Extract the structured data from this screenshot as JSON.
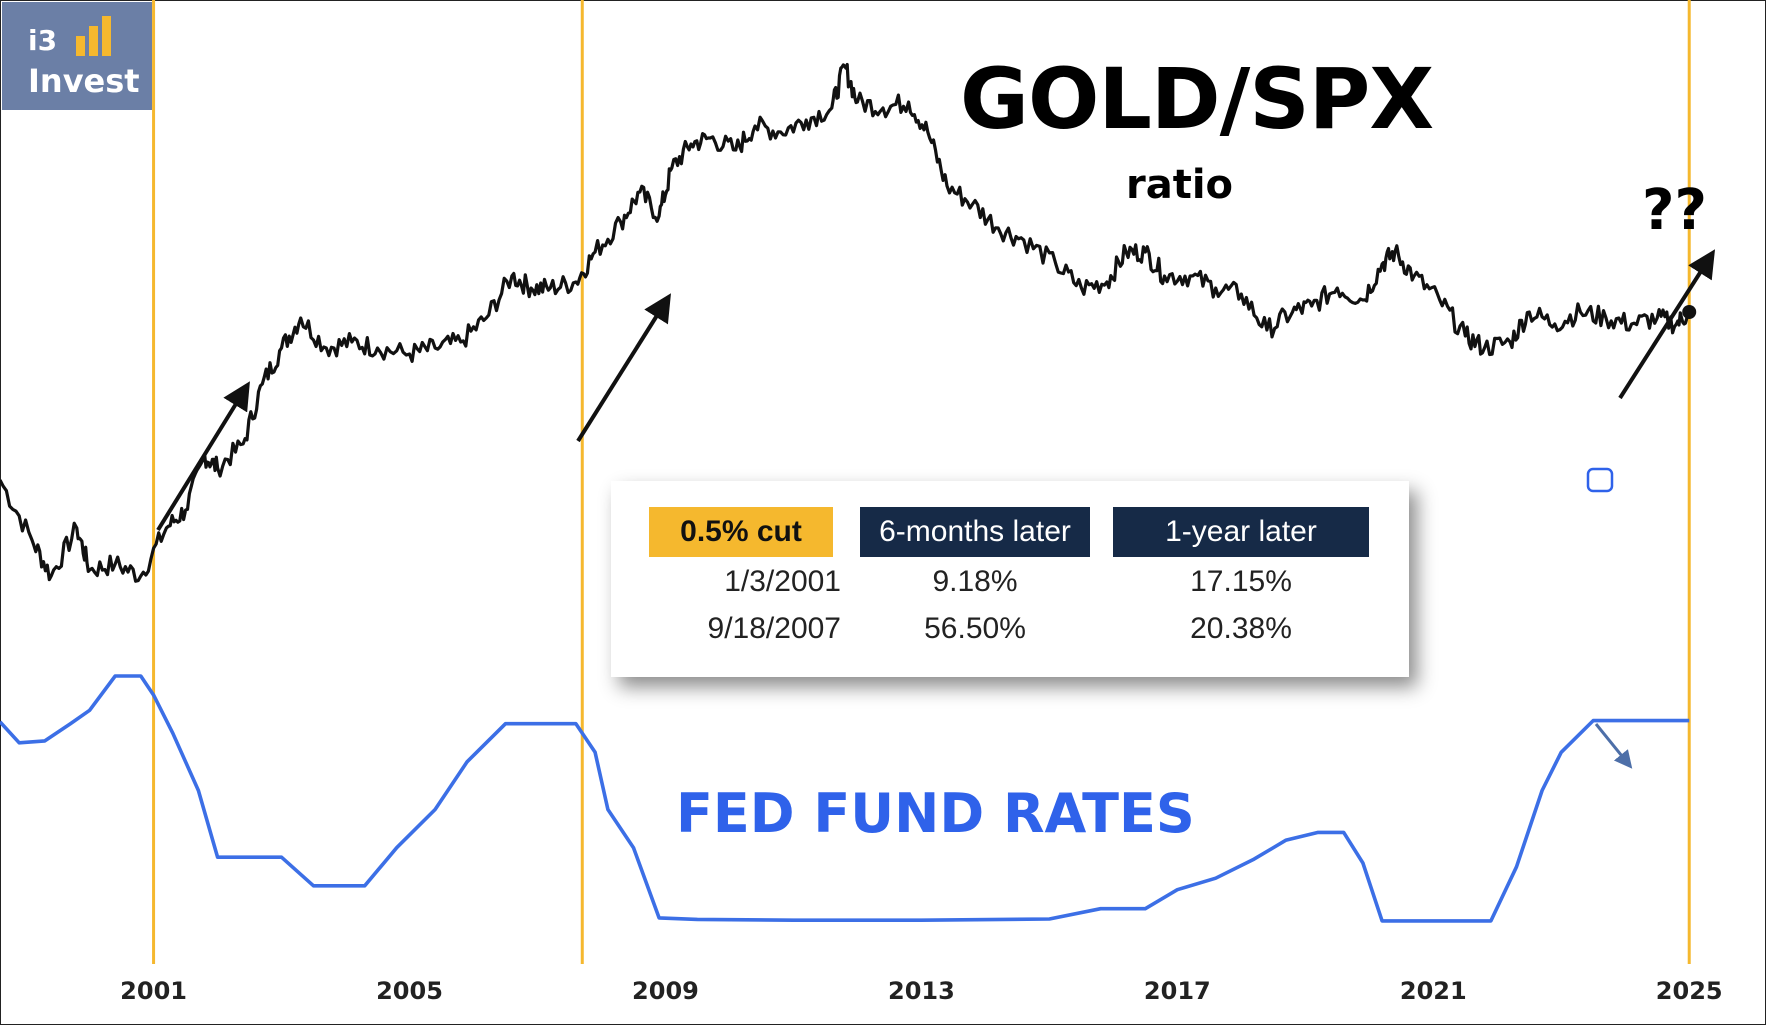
{
  "logo": {
    "line1": "i3",
    "line2": "Invest"
  },
  "title": "GOLD/SPX",
  "subtitle": "ratio",
  "question_marks": "??",
  "fed_label": "FED FUND RATES",
  "colors": {
    "gold_line": "#111111",
    "fed_line": "#3c6fe6",
    "vline": "#f5b82e",
    "header_gold": "#f5b82e",
    "header_navy": "#162a47",
    "fed_text": "#2f62ea",
    "logo_bg": "#6b7fa6"
  },
  "table": {
    "headers": [
      "0.5% cut",
      "6-months later",
      "1-year later"
    ],
    "rows": [
      {
        "date": "1/3/2001",
        "six_month": "9.18%",
        "one_year": "17.15%"
      },
      {
        "date": "9/18/2007",
        "six_month": "56.50%",
        "one_year": "20.38%"
      }
    ]
  },
  "chart_data": {
    "type": "line",
    "title": "GOLD/SPX ratio",
    "x_ticks": [
      "2001",
      "2005",
      "2009",
      "2013",
      "2017",
      "2021",
      "2025"
    ],
    "x_range": [
      1998.6,
      2026.2
    ],
    "vertical_markers": [
      2001.0,
      2007.7,
      2025.0
    ],
    "series": [
      {
        "name": "GOLD/SPX",
        "y_range": [
          0,
          1
        ],
        "points": [
          [
            1998.6,
            0.3
          ],
          [
            1999.1,
            0.2
          ],
          [
            1999.4,
            0.14
          ],
          [
            1999.8,
            0.22
          ],
          [
            2000.0,
            0.15
          ],
          [
            2000.4,
            0.16
          ],
          [
            2000.8,
            0.14
          ],
          [
            2001.2,
            0.22
          ],
          [
            2001.5,
            0.25
          ],
          [
            2001.8,
            0.34
          ],
          [
            2002.0,
            0.32
          ],
          [
            2002.4,
            0.36
          ],
          [
            2002.7,
            0.46
          ],
          [
            2003.0,
            0.52
          ],
          [
            2003.3,
            0.57
          ],
          [
            2003.7,
            0.52
          ],
          [
            2004.1,
            0.53
          ],
          [
            2004.5,
            0.52
          ],
          [
            2005.0,
            0.51
          ],
          [
            2005.4,
            0.52
          ],
          [
            2005.8,
            0.53
          ],
          [
            2006.2,
            0.57
          ],
          [
            2006.6,
            0.64
          ],
          [
            2006.9,
            0.62
          ],
          [
            2007.2,
            0.62
          ],
          [
            2007.6,
            0.63
          ],
          [
            2007.9,
            0.68
          ],
          [
            2008.3,
            0.73
          ],
          [
            2008.6,
            0.78
          ],
          [
            2008.9,
            0.74
          ],
          [
            2009.1,
            0.82
          ],
          [
            2009.4,
            0.86
          ],
          [
            2009.7,
            0.87
          ],
          [
            2010.1,
            0.85
          ],
          [
            2010.4,
            0.89
          ],
          [
            2010.8,
            0.88
          ],
          [
            2011.2,
            0.9
          ],
          [
            2011.6,
            0.92
          ],
          [
            2011.8,
            0.99
          ],
          [
            2012.0,
            0.93
          ],
          [
            2012.4,
            0.92
          ],
          [
            2012.8,
            0.93
          ],
          [
            2013.1,
            0.88
          ],
          [
            2013.4,
            0.79
          ],
          [
            2013.8,
            0.76
          ],
          [
            2014.2,
            0.72
          ],
          [
            2014.6,
            0.7
          ],
          [
            2015.1,
            0.66
          ],
          [
            2015.5,
            0.62
          ],
          [
            2015.9,
            0.63
          ],
          [
            2016.2,
            0.68
          ],
          [
            2016.5,
            0.68
          ],
          [
            2016.8,
            0.64
          ],
          [
            2017.2,
            0.64
          ],
          [
            2017.6,
            0.62
          ],
          [
            2018.0,
            0.61
          ],
          [
            2018.4,
            0.55
          ],
          [
            2018.8,
            0.58
          ],
          [
            2019.1,
            0.59
          ],
          [
            2019.5,
            0.62
          ],
          [
            2019.9,
            0.6
          ],
          [
            2020.2,
            0.66
          ],
          [
            2020.4,
            0.68
          ],
          [
            2020.7,
            0.64
          ],
          [
            2021.1,
            0.6
          ],
          [
            2021.5,
            0.54
          ],
          [
            2021.8,
            0.52
          ],
          [
            2022.2,
            0.53
          ],
          [
            2022.5,
            0.58
          ],
          [
            2022.9,
            0.56
          ],
          [
            2023.3,
            0.58
          ],
          [
            2023.7,
            0.57
          ],
          [
            2024.1,
            0.56
          ],
          [
            2024.5,
            0.57
          ],
          [
            2024.8,
            0.56
          ],
          [
            2025.0,
            0.58
          ]
        ]
      },
      {
        "name": "FED FUND RATES",
        "unit": "%",
        "y_range": [
          0,
          6.5
        ],
        "points": [
          [
            1998.6,
            5.3
          ],
          [
            1998.9,
            4.75
          ],
          [
            1999.3,
            4.8
          ],
          [
            1999.7,
            5.25
          ],
          [
            2000.0,
            5.6
          ],
          [
            2000.4,
            6.5
          ],
          [
            2000.8,
            6.5
          ],
          [
            2001.0,
            6.0
          ],
          [
            2001.3,
            5.0
          ],
          [
            2001.7,
            3.5
          ],
          [
            2002.0,
            1.75
          ],
          [
            2002.5,
            1.75
          ],
          [
            2003.0,
            1.75
          ],
          [
            2003.5,
            1.0
          ],
          [
            2004.3,
            1.0
          ],
          [
            2004.8,
            2.0
          ],
          [
            2005.4,
            3.0
          ],
          [
            2005.9,
            4.25
          ],
          [
            2006.5,
            5.25
          ],
          [
            2007.0,
            5.25
          ],
          [
            2007.6,
            5.25
          ],
          [
            2007.9,
            4.5
          ],
          [
            2008.1,
            3.0
          ],
          [
            2008.5,
            2.0
          ],
          [
            2008.9,
            0.16
          ],
          [
            2009.5,
            0.12
          ],
          [
            2011.0,
            0.1
          ],
          [
            2013.0,
            0.1
          ],
          [
            2015.0,
            0.13
          ],
          [
            2015.8,
            0.4
          ],
          [
            2016.5,
            0.4
          ],
          [
            2017.0,
            0.9
          ],
          [
            2017.6,
            1.2
          ],
          [
            2018.2,
            1.7
          ],
          [
            2018.7,
            2.2
          ],
          [
            2019.2,
            2.4
          ],
          [
            2019.6,
            2.4
          ],
          [
            2019.9,
            1.6
          ],
          [
            2020.2,
            0.08
          ],
          [
            2021.0,
            0.08
          ],
          [
            2021.9,
            0.08
          ],
          [
            2022.3,
            1.5
          ],
          [
            2022.7,
            3.5
          ],
          [
            2023.0,
            4.5
          ],
          [
            2023.5,
            5.33
          ],
          [
            2024.7,
            5.33
          ],
          [
            2025.0,
            5.33
          ]
        ]
      }
    ]
  }
}
